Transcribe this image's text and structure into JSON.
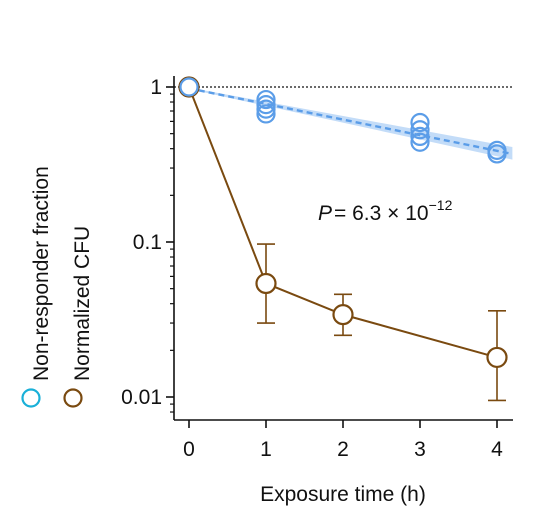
{
  "chart_data": {
    "type": "line",
    "xlabel": "Exposure time (h)",
    "x_ticks": [
      "0",
      "1",
      "2",
      "3",
      "4"
    ],
    "y_ticks": [
      "1",
      "0.1",
      "0.01"
    ],
    "ylim": [
      0.008,
      1.12
    ],
    "xlim": [
      -0.2,
      4.2
    ],
    "y_scale": "log",
    "reference_line_y": 1,
    "annotation": {
      "P_symbol": "P",
      "text": "= 6.3 × 10",
      "exponent": "−12"
    },
    "legend": {
      "placement": "left-vertical",
      "entries": [
        {
          "label": "Non-responder fraction",
          "color": "#1ab0d8"
        },
        {
          "label": "Normalized CFU",
          "color": "#7a4a10"
        }
      ]
    },
    "series": [
      {
        "name": "Non-responder fraction",
        "color": "#5b9de8",
        "points": [
          {
            "x": 0,
            "y": 1.0
          },
          {
            "x": 1,
            "y": 0.83
          },
          {
            "x": 1,
            "y": 0.77
          },
          {
            "x": 1,
            "y": 0.72
          },
          {
            "x": 1,
            "y": 0.67
          },
          {
            "x": 3,
            "y": 0.59
          },
          {
            "x": 3,
            "y": 0.53
          },
          {
            "x": 3,
            "y": 0.48
          },
          {
            "x": 3,
            "y": 0.44
          },
          {
            "x": 4,
            "y": 0.39
          },
          {
            "x": 4,
            "y": 0.37
          }
        ],
        "fit": {
          "x": [
            0,
            4.2
          ],
          "y": [
            0.98,
            0.37
          ],
          "band_lower": [
            0.97,
            0.34
          ],
          "band_upper": [
            0.99,
            0.41
          ]
        }
      },
      {
        "name": "Normalized CFU",
        "color": "#7a4a10",
        "x": [
          0,
          1,
          2,
          4
        ],
        "y": [
          1.0,
          0.054,
          0.034,
          0.018
        ],
        "err_low": [
          1.0,
          0.03,
          0.025,
          0.0095
        ],
        "err_high": [
          1.0,
          0.097,
          0.046,
          0.036
        ]
      }
    ]
  }
}
